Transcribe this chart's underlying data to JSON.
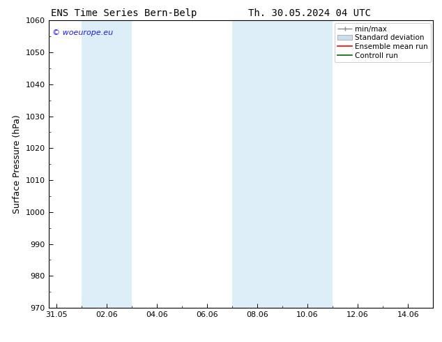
{
  "title_left": "ENS Time Series Bern-Belp",
  "title_right": "Th. 30.05.2024 04 UTC",
  "ylabel": "Surface Pressure (hPa)",
  "ylim": [
    970,
    1060
  ],
  "yticks": [
    970,
    980,
    990,
    1000,
    1010,
    1020,
    1030,
    1040,
    1050,
    1060
  ],
  "xtick_labels": [
    "31.05",
    "02.06",
    "04.06",
    "06.06",
    "08.06",
    "10.06",
    "12.06",
    "14.06"
  ],
  "xtick_positions": [
    0,
    2,
    4,
    6,
    8,
    10,
    12,
    14
  ],
  "xlim": [
    -0.3,
    15.0
  ],
  "shaded_bands": [
    {
      "x_start": 1.0,
      "x_end": 3.0,
      "color": "#ddeef8"
    },
    {
      "x_start": 7.0,
      "x_end": 9.0,
      "color": "#ddeef8"
    },
    {
      "x_start": 9.0,
      "x_end": 11.0,
      "color": "#ddeef8"
    }
  ],
  "watermark_text": "© woeurope.eu",
  "watermark_color": "#1a1aff",
  "legend_labels": [
    "min/max",
    "Standard deviation",
    "Ensemble mean run",
    "Controll run"
  ],
  "bg_color": "#ffffff",
  "plot_bg_color": "#ffffff",
  "title_fontsize": 10,
  "ylabel_fontsize": 9,
  "tick_fontsize": 8,
  "legend_fontsize": 7.5
}
